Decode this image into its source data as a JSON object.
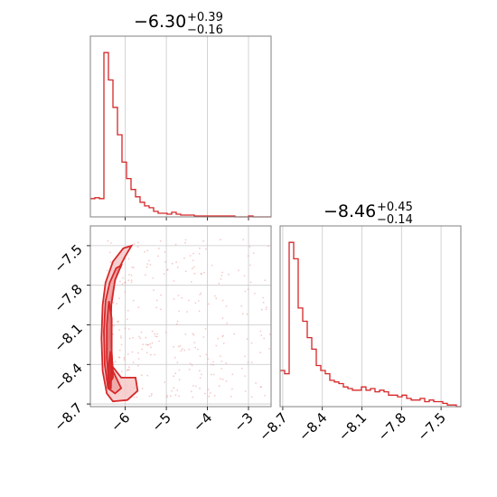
{
  "chart_data": [
    {
      "type": "histogram",
      "panel": "top-left",
      "title": {
        "median": "−6.30",
        "plus": "+0.39",
        "minus": "−0.16"
      },
      "xlim": [
        -6.85,
        -2.45
      ],
      "xticks": [
        -6,
        -5,
        -4,
        -3
      ],
      "grid": true,
      "color": "#d62728",
      "bins_x": [
        -6.85,
        -6.74,
        -6.63,
        -6.52,
        -6.41,
        -6.3,
        -6.19,
        -6.08,
        -5.97,
        -5.86,
        -5.75,
        -5.64,
        -5.53,
        -5.42,
        -5.31,
        -5.2,
        -5.09,
        -4.98,
        -4.87,
        -4.76,
        -4.65,
        -4.54,
        -4.43,
        -4.32,
        -4.21,
        -4.1,
        -3.99,
        -3.88,
        -3.77,
        -3.66,
        -3.55,
        -3.44,
        -3.33,
        -3.22,
        -3.11,
        -3.0,
        -2.89,
        -2.78,
        -2.67,
        -2.56,
        -2.45
      ],
      "counts": [
        20,
        21,
        20,
        180,
        150,
        120,
        90,
        60,
        42,
        30,
        22,
        16,
        12,
        10,
        6,
        4,
        4,
        3,
        5,
        3,
        2,
        2,
        2,
        1,
        1,
        1,
        1,
        1,
        1,
        1,
        1,
        1,
        0,
        0,
        0,
        1,
        0,
        0,
        0,
        0
      ]
    },
    {
      "type": "scatter",
      "panel": "bottom-left",
      "xlim": [
        -6.85,
        -2.45
      ],
      "ylim": [
        -8.72,
        -7.35
      ],
      "xticks": [
        -6,
        -5,
        -4,
        -3
      ],
      "yticks": [
        -8.7,
        -8.4,
        -8.1,
        -7.8,
        -7.5
      ],
      "xtick_labels": [
        "−6",
        "−5",
        "−4",
        "−3"
      ],
      "ytick_labels": [
        "−8.7",
        "−8.4",
        "−8.1",
        "−7.8",
        "−7.5"
      ],
      "grid": true,
      "color": "#d62728",
      "contours": [
        [
          [
            -6.45,
            -8.62
          ],
          [
            -6.55,
            -8.45
          ],
          [
            -6.58,
            -8.2
          ],
          [
            -6.55,
            -7.95
          ],
          [
            -6.48,
            -7.78
          ],
          [
            -6.3,
            -7.62
          ],
          [
            -6.05,
            -7.52
          ],
          [
            -5.85,
            -7.5
          ],
          [
            -6.0,
            -7.58
          ],
          [
            -6.2,
            -7.7
          ],
          [
            -6.35,
            -7.9
          ],
          [
            -6.4,
            -8.15
          ],
          [
            -6.35,
            -8.4
          ],
          [
            -6.1,
            -8.5
          ],
          [
            -5.75,
            -8.5
          ],
          [
            -5.7,
            -8.6
          ],
          [
            -5.95,
            -8.67
          ],
          [
            -6.3,
            -8.68
          ],
          [
            -6.45,
            -8.62
          ]
        ],
        [
          [
            -6.42,
            -8.58
          ],
          [
            -6.5,
            -8.4
          ],
          [
            -6.52,
            -8.15
          ],
          [
            -6.48,
            -7.92
          ],
          [
            -6.38,
            -7.78
          ],
          [
            -6.22,
            -7.67
          ],
          [
            -6.1,
            -7.65
          ],
          [
            -6.25,
            -7.76
          ],
          [
            -6.34,
            -7.95
          ],
          [
            -6.36,
            -8.2
          ],
          [
            -6.3,
            -8.45
          ],
          [
            -6.1,
            -8.58
          ],
          [
            -6.25,
            -8.62
          ],
          [
            -6.42,
            -8.58
          ]
        ],
        [
          [
            -6.4,
            -8.55
          ],
          [
            -6.45,
            -8.35
          ],
          [
            -6.45,
            -8.1
          ],
          [
            -6.4,
            -7.92
          ],
          [
            -6.33,
            -8.05
          ],
          [
            -6.33,
            -8.3
          ],
          [
            -6.3,
            -8.5
          ],
          [
            -6.4,
            -8.55
          ]
        ],
        [
          [
            -6.4,
            -8.58
          ],
          [
            -6.42,
            -8.45
          ],
          [
            -6.36,
            -8.3
          ],
          [
            -6.34,
            -8.45
          ],
          [
            -6.35,
            -8.58
          ],
          [
            -6.4,
            -8.58
          ]
        ]
      ],
      "contour_fills": [
        "#f6c8c8",
        "#eda3a3",
        "#e07676",
        "#d62728"
      ]
    },
    {
      "type": "histogram",
      "panel": "bottom-right",
      "title": {
        "median": "−8.46",
        "plus": "+0.45",
        "minus": "−0.14"
      },
      "xlim": [
        -8.72,
        -7.35
      ],
      "xticks": [
        -8.7,
        -8.4,
        -8.1,
        -7.8,
        -7.5
      ],
      "xtick_labels": [
        "−8.7",
        "−8.4",
        "−8.1",
        "−7.8",
        "−7.5"
      ],
      "grid": true,
      "color": "#d62728",
      "bins_x": [
        -8.72,
        -8.6858,
        -8.6515,
        -8.6173,
        -8.583,
        -8.5488,
        -8.5145,
        -8.4803,
        -8.446,
        -8.4118,
        -8.3775,
        -8.3433,
        -8.309,
        -8.2748,
        -8.2405,
        -8.2063,
        -8.172,
        -8.1378,
        -8.1035,
        -8.0693,
        -8.035,
        -8.0008,
        -7.9665,
        -7.9323,
        -7.898,
        -7.8638,
        -7.8295,
        -7.7953,
        -7.761,
        -7.7268,
        -7.6925,
        -7.6583,
        -7.624,
        -7.5898,
        -7.5555,
        -7.5213,
        -7.487,
        -7.4528,
        -7.4185,
        -7.3843,
        -7.35
      ],
      "counts": [
        22,
        20,
        100,
        90,
        60,
        52,
        42,
        35,
        25,
        22,
        20,
        16,
        15,
        14,
        12,
        11,
        10,
        10,
        12,
        10,
        11,
        9,
        10,
        9,
        7,
        7,
        6,
        7,
        5,
        4,
        4,
        5,
        3,
        4,
        3,
        3,
        2,
        1,
        1,
        0
      ]
    }
  ]
}
